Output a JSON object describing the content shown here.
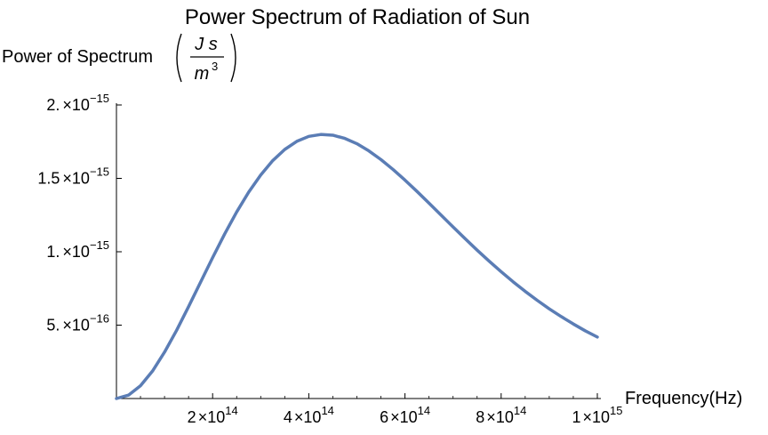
{
  "chart_data": {
    "type": "line",
    "title": "Power Spectrum of Radiation of Sun",
    "ylabel": {
      "text": "Power of Spectrum",
      "unit_numerator": "J s",
      "unit_denominator_base": "m",
      "unit_denominator_exp": "3"
    },
    "xlabel": "Frequency(Hz)",
    "xlim": [
      0,
      1000000000000000.0
    ],
    "ylim": [
      0,
      2e-15
    ],
    "x_ticks": [
      {
        "value": 200000000000000.0,
        "mantissa": "2",
        "times": "×",
        "base": "10",
        "exp": "14"
      },
      {
        "value": 400000000000000.0,
        "mantissa": "4",
        "times": "×",
        "base": "10",
        "exp": "14"
      },
      {
        "value": 600000000000000.0,
        "mantissa": "6",
        "times": "×",
        "base": "10",
        "exp": "14"
      },
      {
        "value": 800000000000000.0,
        "mantissa": "8",
        "times": "×",
        "base": "10",
        "exp": "14"
      },
      {
        "value": 1000000000000000.0,
        "mantissa": "1",
        "times": "×",
        "base": "10",
        "exp": "15"
      }
    ],
    "y_ticks": [
      {
        "value": 5e-16,
        "mantissa": "5.",
        "times": "×",
        "base": "10",
        "exp": "−16"
      },
      {
        "value": 1e-15,
        "mantissa": "1.",
        "times": "×",
        "base": "10",
        "exp": "−15"
      },
      {
        "value": 1.5e-15,
        "mantissa": "1.5",
        "times": "×",
        "base": "10",
        "exp": "−15"
      },
      {
        "value": 2e-15,
        "mantissa": "2.",
        "times": "×",
        "base": "10",
        "exp": "−15"
      }
    ],
    "grid": false,
    "line_color": "#5b7db5",
    "series": [
      {
        "x": [
          0,
          25000000000000.0,
          50000000000000.0,
          75000000000000.0,
          100000000000000.0,
          125000000000000.0,
          150000000000000.0,
          175000000000000.0,
          200000000000000.0,
          225000000000000.0,
          250000000000000.0,
          275000000000000.0,
          300000000000000.0,
          325000000000000.0,
          350000000000000.0,
          375000000000000.0,
          400000000000000.0,
          425000000000000.0,
          450000000000000.0,
          475000000000000.0,
          500000000000000.0,
          525000000000000.0,
          550000000000000.0,
          575000000000000.0,
          600000000000000.0,
          625000000000000.0,
          650000000000000.0,
          675000000000000.0,
          700000000000000.0,
          725000000000000.0,
          750000000000000.0,
          775000000000000.0,
          800000000000000.0,
          825000000000000.0,
          850000000000000.0,
          875000000000000.0,
          900000000000000.0,
          925000000000000.0,
          950000000000000.0,
          975000000000000.0,
          1000000000000000.0
        ],
        "y": [
          0,
          2.3e-17,
          8.7e-17,
          1.87e-16,
          3.16e-16,
          4.64e-16,
          6.26e-16,
          7.93e-16,
          9.6e-16,
          1.121e-15,
          1.271e-15,
          1.406e-15,
          1.523e-15,
          1.621e-15,
          1.697e-15,
          1.752e-15,
          1.786e-15,
          1.799e-15,
          1.794e-15,
          1.772e-15,
          1.736e-15,
          1.687e-15,
          1.628e-15,
          1.561e-15,
          1.488e-15,
          1.411e-15,
          1.331e-15,
          1.25e-15,
          1.169e-15,
          1.089e-15,
          1.011e-15,
          9.36e-16,
          8.64e-16,
          7.95e-16,
          7.3e-16,
          6.69e-16,
          6.11e-16,
          5.58e-16,
          5.08e-16,
          4.61e-16,
          4.19e-16
        ]
      }
    ]
  }
}
